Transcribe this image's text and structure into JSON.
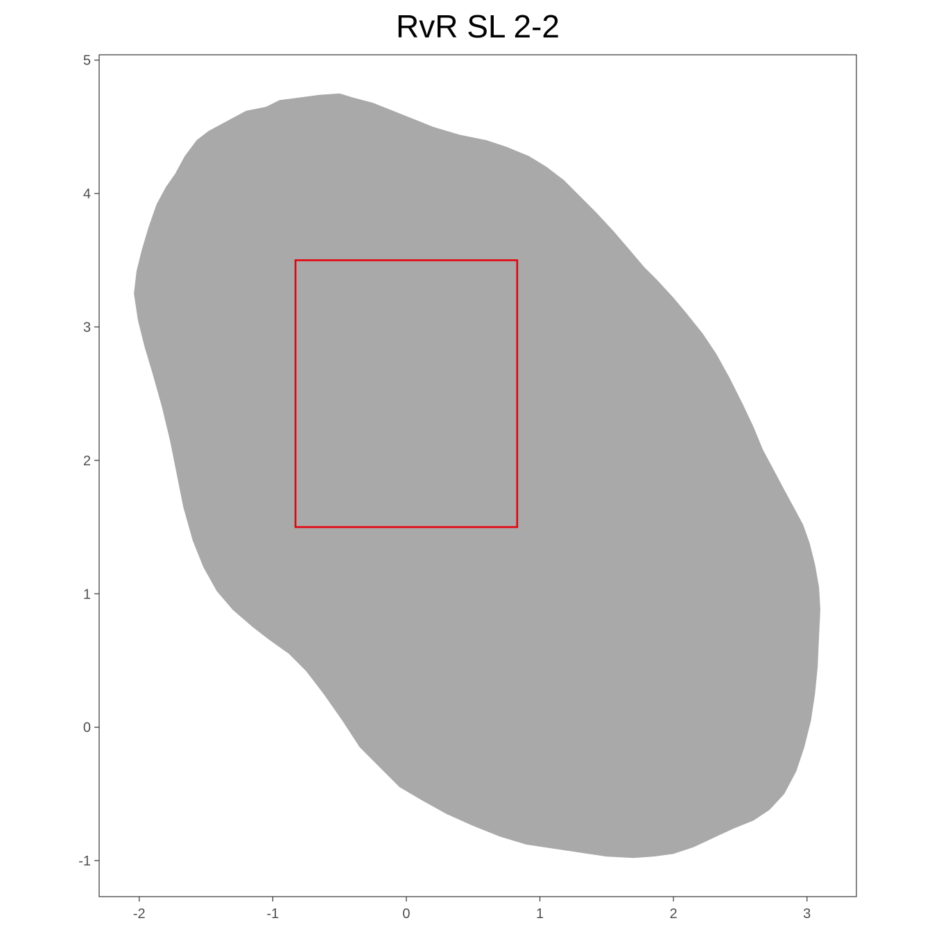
{
  "chart_data": {
    "type": "area",
    "title": "RvR SL 2-2",
    "xlabel": "",
    "ylabel": "",
    "xlim": [
      -2.3,
      3.37
    ],
    "ylim": [
      -1.27,
      5.04
    ],
    "x_ticks": [
      -2,
      -1,
      0,
      1,
      2,
      3
    ],
    "x_tick_labels": [
      "-2",
      "-1",
      "0",
      "1",
      "2",
      "3"
    ],
    "y_ticks": [
      -1,
      0,
      1,
      2,
      3,
      4,
      5
    ],
    "y_tick_labels": [
      "-1",
      "0",
      "1",
      "2",
      "3",
      "4",
      "5"
    ],
    "grid": false,
    "region": {
      "name": "",
      "color": "#a9a9a9",
      "boundary": [
        [
          -2.04,
          3.25
        ],
        [
          -2.02,
          3.42
        ],
        [
          -1.98,
          3.58
        ],
        [
          -1.93,
          3.75
        ],
        [
          -1.87,
          3.92
        ],
        [
          -1.8,
          4.05
        ],
        [
          -1.73,
          4.15
        ],
        [
          -1.66,
          4.28
        ],
        [
          -1.57,
          4.4
        ],
        [
          -1.48,
          4.47
        ],
        [
          -1.33,
          4.55
        ],
        [
          -1.2,
          4.62
        ],
        [
          -1.05,
          4.65
        ],
        [
          -0.95,
          4.7
        ],
        [
          -0.8,
          4.72
        ],
        [
          -0.65,
          4.74
        ],
        [
          -0.5,
          4.75
        ],
        [
          -0.4,
          4.72
        ],
        [
          -0.25,
          4.68
        ],
        [
          -0.1,
          4.62
        ],
        [
          0.05,
          4.56
        ],
        [
          0.2,
          4.5
        ],
        [
          0.4,
          4.44
        ],
        [
          0.6,
          4.4
        ],
        [
          0.75,
          4.35
        ],
        [
          0.92,
          4.28
        ],
        [
          1.05,
          4.2
        ],
        [
          1.18,
          4.1
        ],
        [
          1.3,
          3.98
        ],
        [
          1.42,
          3.86
        ],
        [
          1.55,
          3.72
        ],
        [
          1.67,
          3.58
        ],
        [
          1.78,
          3.45
        ],
        [
          1.88,
          3.35
        ],
        [
          2.0,
          3.22
        ],
        [
          2.1,
          3.1
        ],
        [
          2.22,
          2.95
        ],
        [
          2.32,
          2.8
        ],
        [
          2.42,
          2.62
        ],
        [
          2.52,
          2.42
        ],
        [
          2.6,
          2.25
        ],
        [
          2.67,
          2.08
        ],
        [
          2.75,
          1.93
        ],
        [
          2.83,
          1.78
        ],
        [
          2.9,
          1.65
        ],
        [
          2.97,
          1.52
        ],
        [
          3.02,
          1.38
        ],
        [
          3.06,
          1.22
        ],
        [
          3.09,
          1.05
        ],
        [
          3.1,
          0.88
        ],
        [
          3.09,
          0.68
        ],
        [
          3.08,
          0.45
        ],
        [
          3.06,
          0.25
        ],
        [
          3.03,
          0.05
        ],
        [
          2.98,
          -0.15
        ],
        [
          2.92,
          -0.33
        ],
        [
          2.83,
          -0.5
        ],
        [
          2.72,
          -0.62
        ],
        [
          2.6,
          -0.7
        ],
        [
          2.45,
          -0.76
        ],
        [
          2.3,
          -0.83
        ],
        [
          2.15,
          -0.9
        ],
        [
          2.0,
          -0.95
        ],
        [
          1.85,
          -0.97
        ],
        [
          1.7,
          -0.98
        ],
        [
          1.5,
          -0.97
        ],
        [
          1.3,
          -0.94
        ],
        [
          1.1,
          -0.91
        ],
        [
          0.9,
          -0.88
        ],
        [
          0.7,
          -0.82
        ],
        [
          0.5,
          -0.74
        ],
        [
          0.3,
          -0.65
        ],
        [
          0.12,
          -0.55
        ],
        [
          -0.05,
          -0.45
        ],
        [
          -0.2,
          -0.3
        ],
        [
          -0.35,
          -0.15
        ],
        [
          -0.48,
          0.05
        ],
        [
          -0.62,
          0.25
        ],
        [
          -0.75,
          0.42
        ],
        [
          -0.88,
          0.55
        ],
        [
          -1.02,
          0.65
        ],
        [
          -1.15,
          0.75
        ],
        [
          -1.3,
          0.88
        ],
        [
          -1.42,
          1.02
        ],
        [
          -1.52,
          1.2
        ],
        [
          -1.6,
          1.4
        ],
        [
          -1.67,
          1.65
        ],
        [
          -1.72,
          1.9
        ],
        [
          -1.77,
          2.15
        ],
        [
          -1.83,
          2.4
        ],
        [
          -1.9,
          2.65
        ],
        [
          -1.96,
          2.85
        ],
        [
          -2.01,
          3.05
        ],
        [
          -2.04,
          3.25
        ]
      ]
    },
    "rectangle": {
      "name": "",
      "color": "#e8000b",
      "x0": -0.83,
      "x1": 0.83,
      "y0": 1.5,
      "y1": 3.5
    }
  }
}
